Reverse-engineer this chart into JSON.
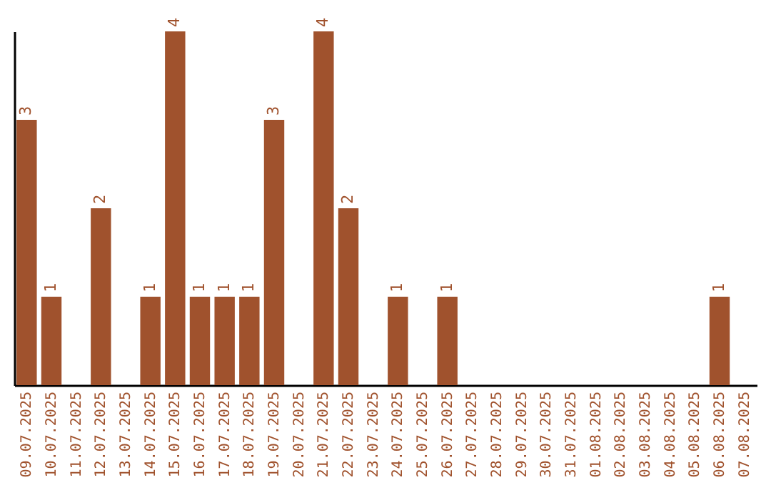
{
  "chart_data": {
    "type": "bar",
    "categories": [
      "09.07.2025",
      "10.07.2025",
      "11.07.2025",
      "12.07.2025",
      "13.07.2025",
      "14.07.2025",
      "15.07.2025",
      "16.07.2025",
      "17.07.2025",
      "18.07.2025",
      "19.07.2025",
      "20.07.2025",
      "21.07.2025",
      "22.07.2025",
      "23.07.2025",
      "24.07.2025",
      "25.07.2025",
      "26.07.2025",
      "27.07.2025",
      "28.07.2025",
      "29.07.2025",
      "30.07.2025",
      "31.07.2025",
      "01.08.2025",
      "02.08.2025",
      "03.08.2025",
      "04.08.2025",
      "05.08.2025",
      "06.08.2025",
      "07.08.2025"
    ],
    "values": [
      3,
      1,
      0,
      2,
      0,
      1,
      4,
      1,
      1,
      1,
      3,
      0,
      4,
      2,
      0,
      1,
      0,
      1,
      0,
      0,
      0,
      0,
      0,
      0,
      0,
      0,
      0,
      0,
      1,
      0
    ],
    "value_labels": [
      "3",
      "1",
      null,
      "2",
      null,
      "1",
      "4",
      "1",
      "1",
      "1",
      "3",
      null,
      "4",
      "2",
      null,
      "1",
      null,
      "1",
      null,
      null,
      null,
      null,
      null,
      null,
      null,
      null,
      null,
      null,
      "1",
      null
    ],
    "color": "#a0522d",
    "grid": false
  }
}
